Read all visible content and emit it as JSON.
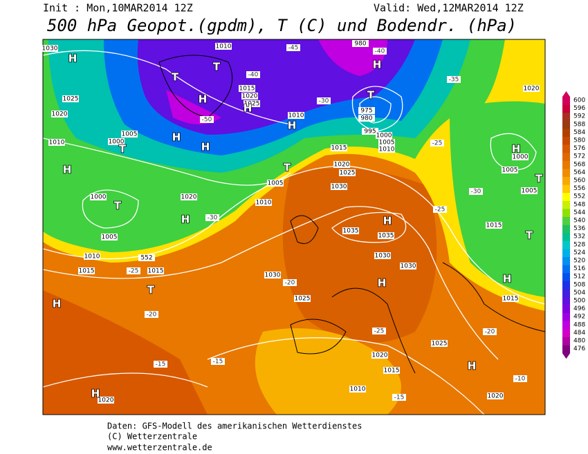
{
  "header": {
    "init": "Init : Mon,10MAR2014 12Z",
    "valid": "Valid: Wed,12MAR2014 12Z",
    "title": "500 hPa Geopot.(gpdm), T (C) und Bodendr. (hPa)"
  },
  "legend": {
    "values": [
      600,
      596,
      592,
      588,
      584,
      580,
      576,
      572,
      568,
      564,
      560,
      556,
      552,
      548,
      544,
      540,
      536,
      532,
      528,
      524,
      520,
      516,
      512,
      508,
      504,
      500,
      496,
      492,
      488,
      484,
      480,
      476
    ],
    "colors": [
      "#d2005a",
      "#c8003c",
      "#a83020",
      "#9a3a10",
      "#b04000",
      "#c84800",
      "#d85800",
      "#e06800",
      "#e87800",
      "#f08c00",
      "#f8a800",
      "#ffc800",
      "#ffff00",
      "#c8f000",
      "#90e000",
      "#50d040",
      "#20c060",
      "#00c090",
      "#00c8c8",
      "#00b0e8",
      "#0090f0",
      "#0070f0",
      "#0050f0",
      "#2030e8",
      "#4020e0",
      "#6010e0",
      "#8000e0",
      "#a000e0",
      "#c000e0",
      "#d000c8",
      "#b000a0",
      "#800080"
    ]
  },
  "map": {
    "centers": [
      "H",
      "T",
      "H",
      "T",
      "H",
      "H",
      "H",
      "T",
      "T",
      "H",
      "H",
      "H",
      "T",
      "T",
      "H",
      "H",
      "H",
      "H",
      "T",
      "T",
      "H",
      "T",
      "H",
      "H",
      "H"
    ],
    "isobars": [
      "1030",
      "1025",
      "1020",
      "1010",
      "1005",
      "1000",
      "1000",
      "1005",
      "1010",
      "1015",
      "552",
      "1015",
      "1015",
      "1020",
      "1025",
      "1010",
      "975",
      "980",
      "995",
      "1000",
      "1005",
      "1010",
      "1015",
      "1020",
      "1025",
      "1030",
      "1005",
      "1010",
      "1020",
      "1035",
      "1035",
      "1030",
      "1030",
      "1030",
      "1025",
      "1000",
      "1005",
      "1005",
      "1015",
      "1015",
      "1020",
      "1025",
      "1020",
      "1015",
      "1010",
      "1020",
      "1020",
      "1010",
      "980"
    ],
    "temps": [
      "-45",
      "-40",
      "-35",
      "-30",
      "-25",
      "-20",
      "-15",
      "-15",
      "-20",
      "-25",
      "-20",
      "-15",
      "-10",
      "-25",
      "-30",
      "-40",
      "-50",
      "-30",
      "-25"
    ]
  },
  "footer": [
    "Daten: GFS-Modell des amerikanischen Wetterdienstes",
    "(C) Wetterzentrale",
    "www.wetterzentrale.de"
  ]
}
